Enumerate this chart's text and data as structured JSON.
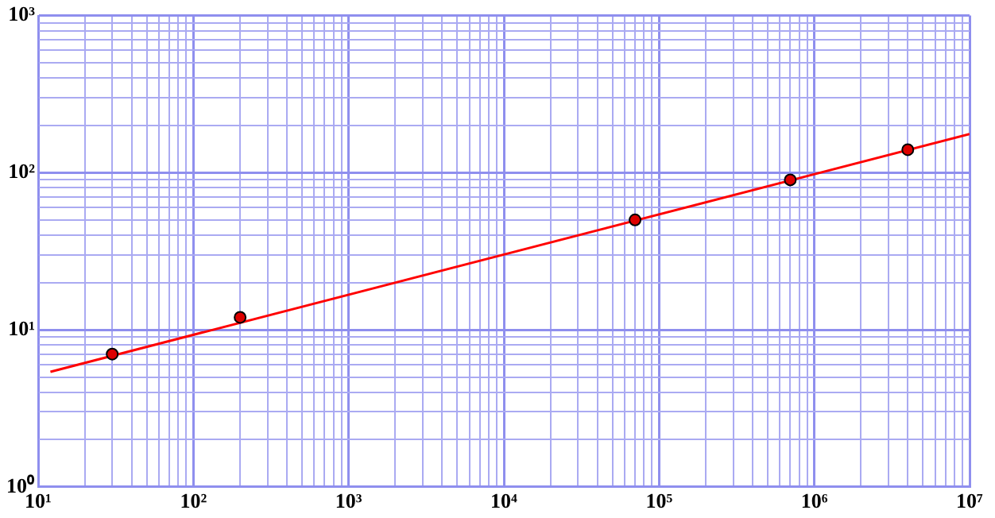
{
  "chart_data": {
    "type": "scatter",
    "log": "xy",
    "grid": true,
    "legend": false,
    "xlim": [
      10,
      10000000
    ],
    "ylim": [
      1,
      1000
    ],
    "xticks": [
      {
        "value": 10,
        "label": "10¹"
      },
      {
        "value": 20,
        "label": null
      },
      {
        "value": 30,
        "label": null
      },
      {
        "value": 40,
        "label": null
      },
      {
        "value": 50,
        "label": null
      },
      {
        "value": 60,
        "label": null
      },
      {
        "value": 70,
        "label": null
      },
      {
        "value": 80,
        "label": null
      },
      {
        "value": 90,
        "label": null
      },
      {
        "value": 100,
        "label": "10²"
      },
      {
        "value": 200,
        "label": null
      },
      {
        "value": 300,
        "label": null
      },
      {
        "value": 400,
        "label": null
      },
      {
        "value": 500,
        "label": null
      },
      {
        "value": 600,
        "label": null
      },
      {
        "value": 700,
        "label": null
      },
      {
        "value": 800,
        "label": null
      },
      {
        "value": 900,
        "label": null
      },
      {
        "value": 1000,
        "label": "10³"
      },
      {
        "value": 2000,
        "label": null
      },
      {
        "value": 3000,
        "label": null
      },
      {
        "value": 4000,
        "label": null
      },
      {
        "value": 5000,
        "label": null
      },
      {
        "value": 6000,
        "label": null
      },
      {
        "value": 7000,
        "label": null
      },
      {
        "value": 8000,
        "label": null
      },
      {
        "value": 9000,
        "label": null
      },
      {
        "value": 10000,
        "label": "10⁴"
      },
      {
        "value": 20000,
        "label": null
      },
      {
        "value": 30000,
        "label": null
      },
      {
        "value": 40000,
        "label": null
      },
      {
        "value": 50000,
        "label": null
      },
      {
        "value": 60000,
        "label": null
      },
      {
        "value": 70000,
        "label": null
      },
      {
        "value": 80000,
        "label": null
      },
      {
        "value": 90000,
        "label": null
      },
      {
        "value": 100000,
        "label": "10⁵"
      },
      {
        "value": 200000,
        "label": null
      },
      {
        "value": 300000,
        "label": null
      },
      {
        "value": 400000,
        "label": null
      },
      {
        "value": 500000,
        "label": null
      },
      {
        "value": 600000,
        "label": null
      },
      {
        "value": 700000,
        "label": null
      },
      {
        "value": 800000,
        "label": null
      },
      {
        "value": 900000,
        "label": null
      },
      {
        "value": 1000000,
        "label": "10⁶"
      },
      {
        "value": 2000000,
        "label": null
      },
      {
        "value": 3000000,
        "label": null
      },
      {
        "value": 4000000,
        "label": null
      },
      {
        "value": 5000000,
        "label": null
      },
      {
        "value": 6000000,
        "label": null
      },
      {
        "value": 7000000,
        "label": null
      },
      {
        "value": 8000000,
        "label": null
      },
      {
        "value": 9000000,
        "label": null
      },
      {
        "value": 10000000,
        "label": "10⁷"
      }
    ],
    "yticks": [
      {
        "value": 1,
        "label": "10⁰"
      },
      {
        "value": 2,
        "label": null
      },
      {
        "value": 3,
        "label": null
      },
      {
        "value": 4,
        "label": null
      },
      {
        "value": 5,
        "label": null
      },
      {
        "value": 6,
        "label": null
      },
      {
        "value": 7,
        "label": null
      },
      {
        "value": 8,
        "label": null
      },
      {
        "value": 9,
        "label": null
      },
      {
        "value": 10,
        "label": "10¹"
      },
      {
        "value": 20,
        "label": null
      },
      {
        "value": 30,
        "label": null
      },
      {
        "value": 40,
        "label": null
      },
      {
        "value": 50,
        "label": null
      },
      {
        "value": 60,
        "label": null
      },
      {
        "value": 70,
        "label": null
      },
      {
        "value": 80,
        "label": null
      },
      {
        "value": 90,
        "label": null
      },
      {
        "value": 100,
        "label": "10²"
      },
      {
        "value": 200,
        "label": null
      },
      {
        "value": 300,
        "label": null
      },
      {
        "value": 400,
        "label": null
      },
      {
        "value": 500,
        "label": null
      },
      {
        "value": 600,
        "label": null
      },
      {
        "value": 700,
        "label": null
      },
      {
        "value": 800,
        "label": null
      },
      {
        "value": 900,
        "label": null
      },
      {
        "value": 1000,
        "label": "10³"
      }
    ],
    "series": [
      {
        "type": "scatter",
        "color": "#dd0000",
        "marker": "circle",
        "x": [
          30,
          200,
          70000,
          700000,
          4000000
        ],
        "values": [
          7,
          12,
          50,
          90,
          140
        ]
      },
      {
        "type": "line",
        "color": "#ff0000",
        "marker": "none",
        "line_style": "solid",
        "x": [
          12,
          10000000
        ],
        "values": [
          5.4,
          176
        ]
      }
    ]
  }
}
